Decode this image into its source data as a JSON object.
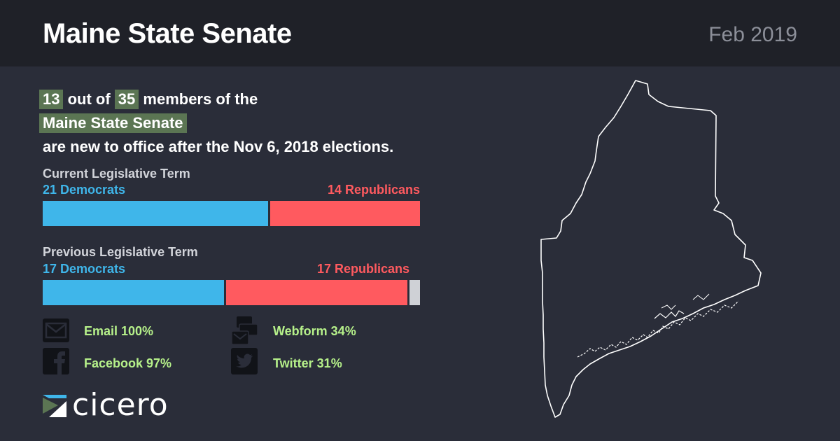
{
  "header": {
    "title": "Maine State Senate",
    "date": "Feb 2019"
  },
  "headline": {
    "new_count": "13",
    "text_1": " out of ",
    "total": "35",
    "text_2": " members of the",
    "chamber": "Maine State Senate",
    "text_3": "are new to office after the Nov 6, 2018 elections."
  },
  "current_term": {
    "label": "Current Legislative Term",
    "dem_label": "21 Democrats",
    "rep_label": "14 Republicans",
    "dem": 21,
    "rep": 14,
    "other": 0
  },
  "previous_term": {
    "label": "Previous Legislative Term",
    "dem_label": "17 Democrats",
    "rep_label": "17 Republicans",
    "dem": 17,
    "rep": 17,
    "other": 1
  },
  "contact_stats": {
    "email": "Email 100%",
    "webform": "Webform 34%",
    "facebook": "Facebook 97%",
    "twitter": "Twitter 31%"
  },
  "logo": {
    "text": "cicero"
  },
  "colors": {
    "democrat": "#3fb6ea",
    "republican": "#ff5a5f",
    "other": "#cfd1d6",
    "highlight": "#5b7553",
    "stat_text": "#b6f18a",
    "background": "#2a2d39",
    "header_bg": "#1f2128"
  },
  "icons": {
    "email": "envelope-icon",
    "webform": "webform-icon",
    "facebook": "facebook-icon",
    "twitter": "twitter-icon",
    "map": "maine-state-outline"
  }
}
